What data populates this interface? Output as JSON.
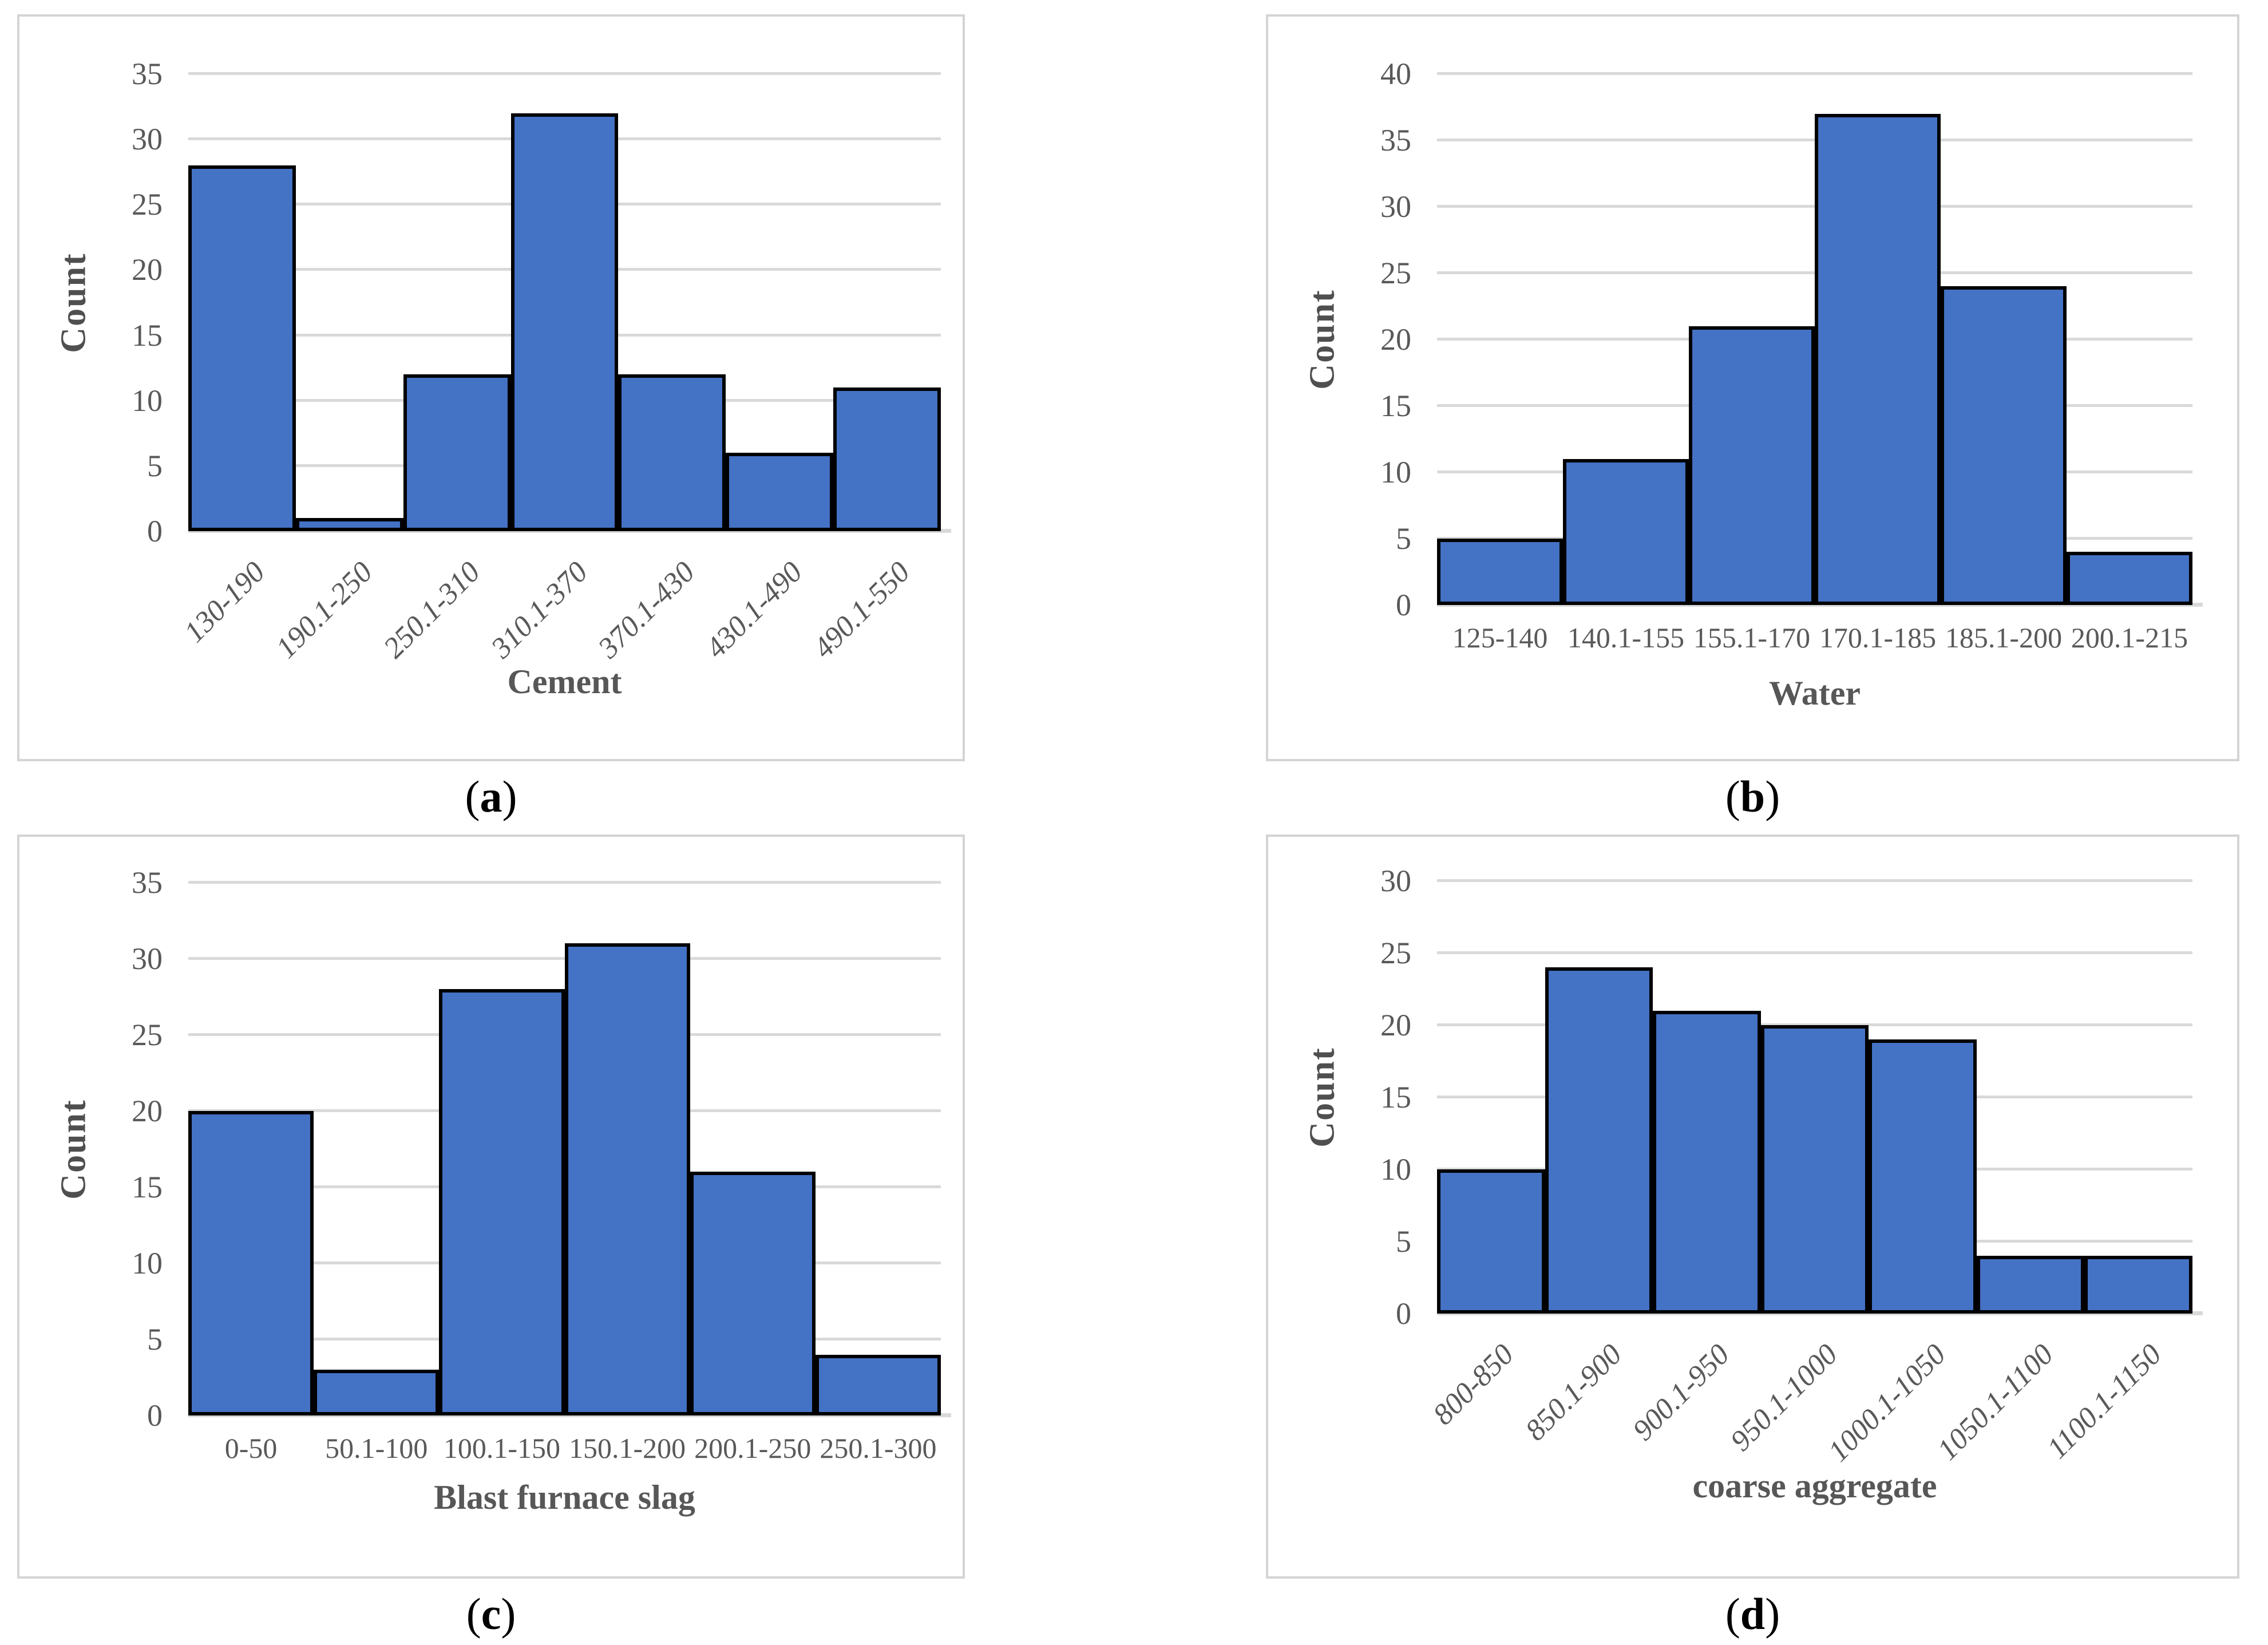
{
  "figure": {
    "background": "#ffffff",
    "layout": "2x2 grid of histogram panels with subfigure captions"
  },
  "colors": {
    "bar_fill": "#4472c4",
    "bar_border": "#000000",
    "gridline": "#d9d9d9",
    "axis_baseline": "#d9d9d9",
    "tick_text": "#595959",
    "axis_title_text": "#575757",
    "panel_border": "#d4d4d4",
    "caption_text": "#000000"
  },
  "chart_data": [
    {
      "id": "a",
      "caption": "a",
      "type": "bar",
      "subtype": "histogram",
      "title": "",
      "xlabel": "Cement",
      "ylabel": "Count",
      "categories": [
        "130-190",
        "190.1-250",
        "250.1-310",
        "310.1-370",
        "370.1-430",
        "430.1-490",
        "490.1-550"
      ],
      "values": [
        28,
        1,
        12,
        32,
        12,
        6,
        11
      ],
      "ylim": [
        0,
        35
      ],
      "ytick_step": 5,
      "yticks": [
        0,
        5,
        10,
        15,
        20,
        25,
        30,
        35
      ],
      "grid": "horizontal",
      "legend": "none",
      "xtick_rotation": 45,
      "xtick_style": "italic"
    },
    {
      "id": "b",
      "caption": "b",
      "type": "bar",
      "subtype": "histogram",
      "title": "",
      "xlabel": "Water",
      "ylabel": "Count",
      "categories": [
        "125-140",
        "140.1-155",
        "155.1-170",
        "170.1-185",
        "185.1-200",
        "200.1-215"
      ],
      "values": [
        5,
        11,
        21,
        37,
        24,
        4
      ],
      "ylim": [
        0,
        40
      ],
      "ytick_step": 5,
      "yticks": [
        0,
        5,
        10,
        15,
        20,
        25,
        30,
        35,
        40
      ],
      "grid": "horizontal",
      "legend": "none",
      "xtick_rotation": 0,
      "xtick_style": "normal"
    },
    {
      "id": "c",
      "caption": "c",
      "type": "bar",
      "subtype": "histogram",
      "title": "",
      "xlabel": "Blast furnace slag",
      "ylabel": "Count",
      "categories": [
        "0-50",
        "50.1-100",
        "100.1-150",
        "150.1-200",
        "200.1-250",
        "250.1-300"
      ],
      "values": [
        20,
        3,
        28,
        31,
        16,
        4
      ],
      "ylim": [
        0,
        35
      ],
      "ytick_step": 5,
      "yticks": [
        0,
        5,
        10,
        15,
        20,
        25,
        30,
        35
      ],
      "grid": "horizontal",
      "legend": "none",
      "xtick_rotation": 0,
      "xtick_style": "normal"
    },
    {
      "id": "d",
      "caption": "d",
      "type": "bar",
      "subtype": "histogram",
      "title": "",
      "xlabel": "coarse aggregate",
      "ylabel": "Count",
      "categories": [
        "800-850",
        "850.1-900",
        "900.1-950",
        "950.1-1000",
        "1000.1-1050",
        "1050.1-1100",
        "1100.1-1150"
      ],
      "values": [
        10,
        24,
        21,
        20,
        19,
        4,
        4
      ],
      "ylim": [
        0,
        30
      ],
      "ytick_step": 5,
      "yticks": [
        0,
        5,
        10,
        15,
        20,
        25,
        30
      ],
      "grid": "horizontal",
      "legend": "none",
      "xtick_rotation": 45,
      "xtick_style": "italic"
    }
  ]
}
